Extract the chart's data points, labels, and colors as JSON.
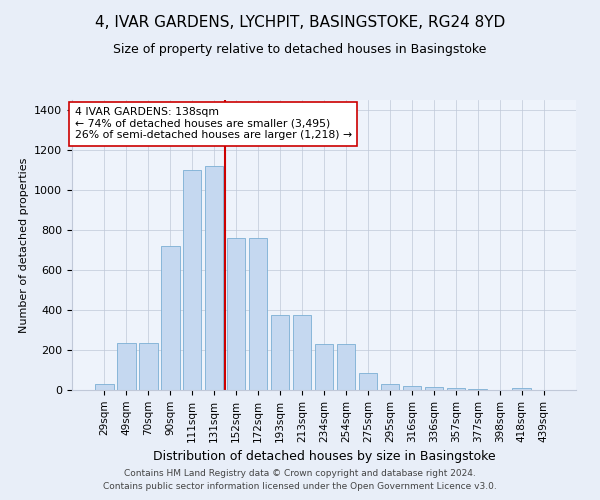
{
  "title": "4, IVAR GARDENS, LYCHPIT, BASINGSTOKE, RG24 8YD",
  "subtitle": "Size of property relative to detached houses in Basingstoke",
  "xlabel": "Distribution of detached houses by size in Basingstoke",
  "ylabel": "Number of detached properties",
  "categories": [
    "29sqm",
    "49sqm",
    "70sqm",
    "90sqm",
    "111sqm",
    "131sqm",
    "152sqm",
    "172sqm",
    "193sqm",
    "213sqm",
    "234sqm",
    "254sqm",
    "275sqm",
    "295sqm",
    "316sqm",
    "336sqm",
    "357sqm",
    "377sqm",
    "398sqm",
    "418sqm",
    "439sqm"
  ],
  "values": [
    30,
    235,
    235,
    720,
    1100,
    1120,
    760,
    760,
    375,
    375,
    230,
    230,
    85,
    30,
    20,
    15,
    8,
    5,
    0,
    8,
    0
  ],
  "bar_color": "#c5d8f0",
  "bar_edge_color": "#7bafd4",
  "vline_x": 5.5,
  "vline_color": "#cc0000",
  "annotation_line1": "4 IVAR GARDENS: 138sqm",
  "annotation_line2": "← 74% of detached houses are smaller (3,495)",
  "annotation_line3": "26% of semi-detached houses are larger (1,218) →",
  "annotation_box_color": "#ffffff",
  "annotation_box_edge": "#cc0000",
  "ylim": [
    0,
    1450
  ],
  "yticks": [
    0,
    200,
    400,
    600,
    800,
    1000,
    1200,
    1400
  ],
  "footer1": "Contains HM Land Registry data © Crown copyright and database right 2024.",
  "footer2": "Contains public sector information licensed under the Open Government Licence v3.0.",
  "bg_color": "#e8eef8",
  "plot_bg_color": "#eef3fb",
  "title_fontsize": 11,
  "subtitle_fontsize": 9,
  "xlabel_fontsize": 9,
  "ylabel_fontsize": 8
}
